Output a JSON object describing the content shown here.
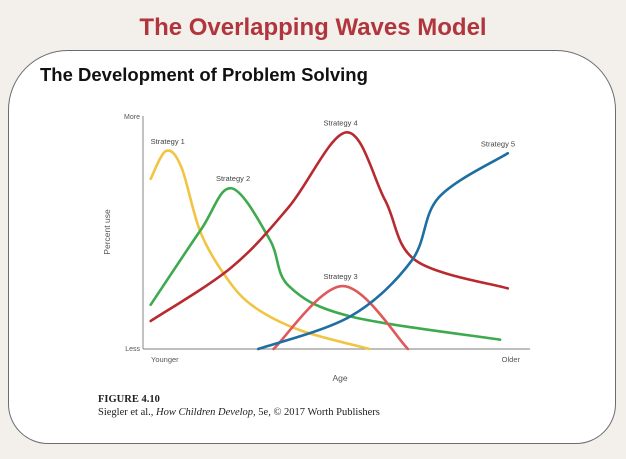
{
  "slide": {
    "title": "The Overlapping Waves Model"
  },
  "card": {
    "title": "The Development of Problem Solving"
  },
  "figure": {
    "label": "FIGURE 4.10",
    "credit_prefix": "Siegler et al., ",
    "credit_book": "How Children Develop,",
    "credit_suffix": " 5e, © 2017 Worth Publishers"
  },
  "chart_data": {
    "type": "line",
    "xlabel": "Age",
    "ylabel": "Percent use",
    "x_tick_labels": {
      "start": "Younger",
      "end": "Older"
    },
    "y_tick_labels": {
      "start": "Less",
      "end": "More"
    },
    "xlim": [
      0,
      100
    ],
    "ylim": [
      0,
      100
    ],
    "grid": false,
    "series": [
      {
        "name": "Strategy 1",
        "color": "#f2c443",
        "points": [
          [
            2,
            73
          ],
          [
            6,
            85
          ],
          [
            10,
            78
          ],
          [
            15,
            50
          ],
          [
            22,
            30
          ],
          [
            29,
            18
          ],
          [
            41,
            8
          ],
          [
            59,
            0
          ]
        ],
        "label_at": [
          2,
          88
        ]
      },
      {
        "name": "Strategy 2",
        "color": "#3daa4e",
        "points": [
          [
            2,
            19
          ],
          [
            15,
            51
          ],
          [
            23,
            69
          ],
          [
            33,
            47
          ],
          [
            38,
            27
          ],
          [
            54,
            14
          ],
          [
            93,
            4
          ]
        ],
        "label_at": [
          19,
          72
        ]
      },
      {
        "name": "Strategy 3",
        "color": "#e0585a",
        "points": [
          [
            34,
            0
          ],
          [
            52,
            27
          ],
          [
            69,
            0
          ]
        ],
        "label_at": [
          47,
          30
        ]
      },
      {
        "name": "Strategy 4",
        "color": "#b82a30",
        "points": [
          [
            2,
            12
          ],
          [
            23,
            35
          ],
          [
            38,
            61
          ],
          [
            53,
            93
          ],
          [
            63,
            64
          ],
          [
            71,
            38
          ],
          [
            95,
            26
          ]
        ],
        "label_at": [
          47,
          96
        ]
      },
      {
        "name": "Strategy 5",
        "color": "#1f6ea1",
        "points": [
          [
            30,
            0
          ],
          [
            54,
            14
          ],
          [
            70,
            38
          ],
          [
            77,
            65
          ],
          [
            95,
            84
          ]
        ],
        "label_at": [
          88,
          87
        ]
      }
    ]
  }
}
